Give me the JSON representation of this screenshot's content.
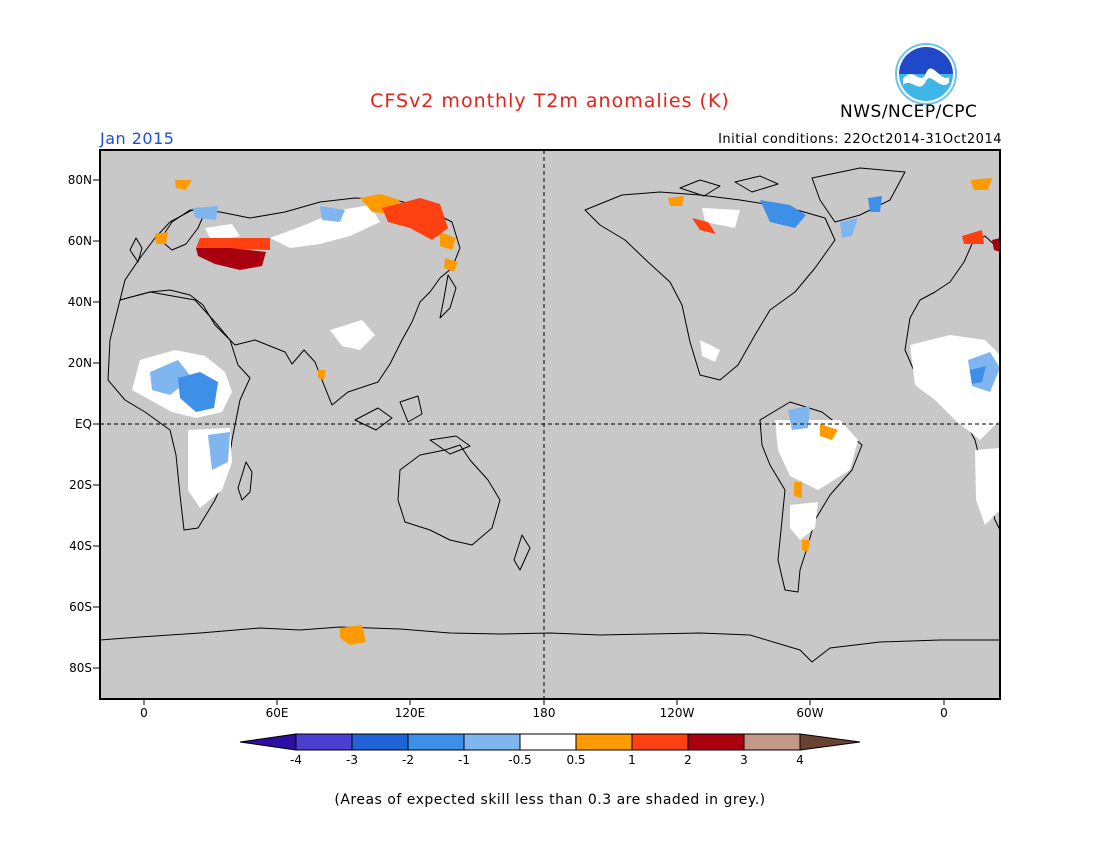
{
  "title": "CFSv2 monthly T2m anomalies (K)",
  "agency": "NWS/NCEP/CPC",
  "logo_text": "NOAA",
  "period": "Jan 2015",
  "initial_conditions": "Initial conditions: 22Oct2014-31Oct2014",
  "footnote": "(Areas of expected skill less than 0.3 are shaded in grey.)",
  "lat_labels": [
    "80N",
    "60N",
    "40N",
    "20N",
    "EQ",
    "20S",
    "40S",
    "60S",
    "80S"
  ],
  "lon_labels": [
    "0",
    "60E",
    "120E",
    "180",
    "120W",
    "60W",
    "0"
  ],
  "colorbar": {
    "ticks": [
      "-4",
      "-3",
      "-2",
      "-1",
      "-0.5",
      "0.5",
      "1",
      "2",
      "3",
      "4"
    ],
    "colors": [
      "#2a0fa0",
      "#4a3fd0",
      "#1f63d6",
      "#3d8fe8",
      "#7fb6f0",
      "#ffffff",
      "#ff9a00",
      "#ff4010",
      "#a8000e",
      "#c29888",
      "#6a4232"
    ]
  },
  "colors": {
    "skill_grey": "#c8c8c8",
    "no_signal": "#ffffff",
    "title_red": "#e8201a",
    "period_blue": "#1a4fd6"
  }
}
